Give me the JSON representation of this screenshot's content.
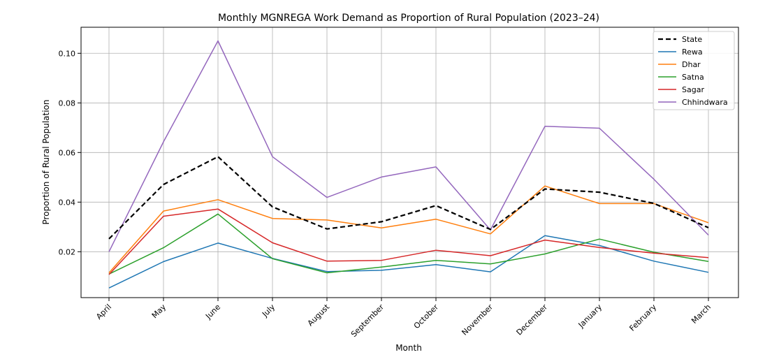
{
  "chart_data": {
    "type": "line",
    "title": "Monthly MGNREGA Work Demand as Proportion of Rural Population (2023–24)",
    "xlabel": "Month",
    "ylabel": "Proportion of Rural Population",
    "categories": [
      "April",
      "May",
      "June",
      "July",
      "August",
      "September",
      "October",
      "November",
      "December",
      "January",
      "February",
      "March"
    ],
    "ylim": [
      0.0015,
      0.1105
    ],
    "yticks": [
      0.02,
      0.04,
      0.06,
      0.08,
      0.1
    ],
    "ytick_labels": [
      "0.02",
      "0.04",
      "0.06",
      "0.08",
      "0.10"
    ],
    "grid": true,
    "legend_position": "top-right",
    "series": [
      {
        "name": "State",
        "color": "#000000",
        "dashed": true,
        "values": [
          0.0252,
          0.0471,
          0.0583,
          0.0381,
          0.0292,
          0.0321,
          0.0386,
          0.029,
          0.0453,
          0.044,
          0.0395,
          0.0297
        ]
      },
      {
        "name": "Rewa",
        "color": "#1f77b4",
        "dashed": false,
        "values": [
          0.0054,
          0.016,
          0.0235,
          0.0173,
          0.012,
          0.0125,
          0.0148,
          0.0119,
          0.0265,
          0.0225,
          0.0162,
          0.0117
        ]
      },
      {
        "name": "Dhar",
        "color": "#ff7f0e",
        "dashed": false,
        "values": [
          0.0115,
          0.0364,
          0.041,
          0.0334,
          0.0328,
          0.0296,
          0.0331,
          0.0272,
          0.0465,
          0.0394,
          0.0394,
          0.0317
        ]
      },
      {
        "name": "Satna",
        "color": "#2ca02c",
        "dashed": false,
        "values": [
          0.011,
          0.0216,
          0.0352,
          0.0172,
          0.0115,
          0.0138,
          0.0165,
          0.0151,
          0.0191,
          0.0251,
          0.0198,
          0.0161
        ]
      },
      {
        "name": "Sagar",
        "color": "#d62728",
        "dashed": false,
        "values": [
          0.0108,
          0.0343,
          0.0372,
          0.0236,
          0.0162,
          0.0165,
          0.0206,
          0.0184,
          0.0247,
          0.0217,
          0.0194,
          0.0176
        ]
      },
      {
        "name": "Chhindwara",
        "color": "#9467bd",
        "dashed": false,
        "values": [
          0.02,
          0.0643,
          0.105,
          0.0583,
          0.0419,
          0.0501,
          0.0542,
          0.0288,
          0.0706,
          0.0698,
          0.0492,
          0.0267
        ]
      }
    ]
  }
}
